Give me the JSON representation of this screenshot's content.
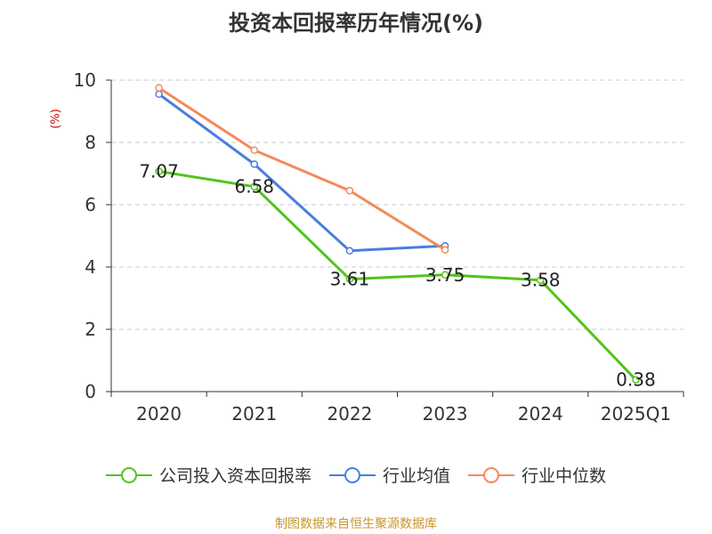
{
  "chart_data": {
    "type": "line",
    "title": "投资本回报率历年情况(%)",
    "ylabel": "(%)",
    "categories": [
      "2020",
      "2021",
      "2022",
      "2023",
      "2024",
      "2025Q1"
    ],
    "ylim": [
      0,
      10
    ],
    "yticks": [
      0,
      2,
      4,
      6,
      8,
      10
    ],
    "grid": true,
    "legend_position": "bottom",
    "series": [
      {
        "name": "公司投入资本回报率",
        "color": "#52c41a",
        "values": [
          7.07,
          6.58,
          3.61,
          3.75,
          3.58,
          0.38
        ],
        "labels": [
          "7.07",
          "6.58",
          "3.61",
          "3.75",
          "3.58",
          "0.38"
        ]
      },
      {
        "name": "行业均值",
        "color": "#4a7ede",
        "values": [
          9.55,
          7.3,
          4.52,
          4.68,
          null,
          null
        ]
      },
      {
        "name": "行业中位数",
        "color": "#f5895a",
        "values": [
          9.75,
          7.75,
          6.45,
          4.55,
          null,
          null
        ]
      }
    ]
  },
  "source": "制图数据来自恒生聚源数据库"
}
